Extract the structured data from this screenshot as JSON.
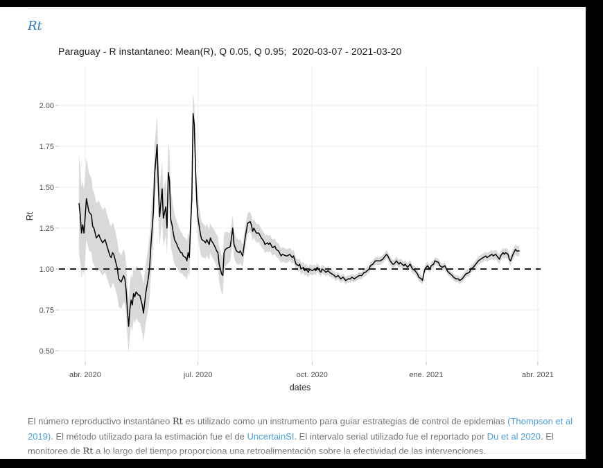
{
  "page": {
    "header_math": "Rt",
    "title": "Paraguay - R instantaneo: Mean(R), Q 0.05, Q 0.95;  2020-03-07 - 2021-03-20"
  },
  "footer": {
    "segments": [
      {
        "t": "El número reproductivo instantáneo ",
        "k": "text"
      },
      {
        "t": "Rt",
        "k": "math"
      },
      {
        "t": " es utilizado como un instrumento para guiar estrategias de control de epidemias ",
        "k": "text"
      },
      {
        "t": "(Thompson et al 2019)",
        "k": "link",
        "name": "link-thompson-et-al-2019"
      },
      {
        "t": ". El método utilizado para la estimación fue el de ",
        "k": "text"
      },
      {
        "t": "UncertainSI",
        "k": "link",
        "name": "link-uncertainsi"
      },
      {
        "t": ". El intervalo serial utilizado fue el reportado por ",
        "k": "text"
      },
      {
        "t": "Du et al 2020",
        "k": "link",
        "name": "link-du-et-al-2020"
      },
      {
        "t": ". El monitoreo de ",
        "k": "text"
      },
      {
        "t": "Rt",
        "k": "math"
      },
      {
        "t": " a lo largo del tiempo proporciona una retroalimentación sobre la efectividad de las intervenciones.",
        "k": "text"
      }
    ]
  },
  "chart_data": {
    "type": "line",
    "title": "Paraguay - R instantaneo: Mean(R), Q 0.05, Q 0.95;  2020-03-07 - 2021-03-20",
    "xlabel": "dates",
    "ylabel": "Rt",
    "series_name": "Mean(R)",
    "band_name": "Q 0.05 - Q 0.95",
    "reference_line": {
      "value": 1.0,
      "style": "dashed",
      "color": "#000000"
    },
    "start_date": "2020-03-27",
    "end_date": "2021-03-20",
    "ylim": [
      0.43,
      2.24
    ],
    "grid": true,
    "line_color": "#000000",
    "band_color": "#d5d5d5",
    "y_ticks": [
      0.5,
      0.75,
      1.0,
      1.25,
      1.5,
      1.75,
      2.0
    ],
    "x_ticks": [
      {
        "label": "abr. 2020",
        "day": 5
      },
      {
        "label": "jul. 2020",
        "day": 96
      },
      {
        "label": "oct. 2020",
        "day": 188
      },
      {
        "label": "ene. 2021",
        "day": 280
      },
      {
        "label": "abr. 2021",
        "day": 370
      }
    ],
    "points": [
      [
        0,
        1.4
      ],
      [
        1,
        1.33
      ],
      [
        2,
        1.22
      ],
      [
        3,
        1.27
      ],
      [
        4,
        1.22
      ],
      [
        6,
        1.43
      ],
      [
        7,
        1.39
      ],
      [
        8,
        1.35
      ],
      [
        10,
        1.33
      ],
      [
        11,
        1.26
      ],
      [
        12,
        1.25
      ],
      [
        13,
        1.22
      ],
      [
        14,
        1.19
      ],
      [
        16,
        1.21
      ],
      [
        17,
        1.19
      ],
      [
        19,
        1.16
      ],
      [
        21,
        1.18
      ],
      [
        23,
        1.13
      ],
      [
        25,
        1.08
      ],
      [
        26,
        1.07
      ],
      [
        27,
        1.1
      ],
      [
        28,
        1.09
      ],
      [
        30,
        1.03
      ],
      [
        31,
        1.0
      ],
      [
        32,
        0.94
      ],
      [
        34,
        0.92
      ],
      [
        36,
        0.96
      ],
      [
        37,
        0.94
      ],
      [
        38,
        0.87
      ],
      [
        39,
        0.75
      ],
      [
        40,
        0.65
      ],
      [
        41,
        0.75
      ],
      [
        42,
        0.81
      ],
      [
        43,
        0.78
      ],
      [
        44,
        0.85
      ],
      [
        45,
        0.83
      ],
      [
        46,
        0.86
      ],
      [
        48,
        0.84
      ],
      [
        49,
        0.84
      ],
      [
        51,
        0.78
      ],
      [
        52,
        0.73
      ],
      [
        54,
        0.86
      ],
      [
        56,
        0.95
      ],
      [
        57,
        1.02
      ],
      [
        58,
        1.15
      ],
      [
        60,
        1.35
      ],
      [
        61,
        1.58
      ],
      [
        63,
        1.76
      ],
      [
        64,
        1.5
      ],
      [
        65,
        1.32
      ],
      [
        67,
        1.49
      ],
      [
        68,
        1.31
      ],
      [
        70,
        1.38
      ],
      [
        71,
        1.25
      ],
      [
        72,
        1.59
      ],
      [
        73,
        1.54
      ],
      [
        74,
        1.3
      ],
      [
        75,
        1.27
      ],
      [
        76,
        1.22
      ],
      [
        77,
        1.18
      ],
      [
        79,
        1.15
      ],
      [
        80,
        1.13
      ],
      [
        82,
        1.1
      ],
      [
        83,
        1.1
      ],
      [
        84,
        1.08
      ],
      [
        86,
        1.07
      ],
      [
        87,
        1.05
      ],
      [
        88,
        1.1
      ],
      [
        89,
        1.07
      ],
      [
        90,
        1.27
      ],
      [
        91,
        1.43
      ],
      [
        92,
        1.95
      ],
      [
        93,
        1.88
      ],
      [
        94,
        1.6
      ],
      [
        95,
        1.41
      ],
      [
        96,
        1.31
      ],
      [
        97,
        1.26
      ],
      [
        98,
        1.21
      ],
      [
        99,
        1.18
      ],
      [
        101,
        1.17
      ],
      [
        102,
        1.16
      ],
      [
        103,
        1.18
      ],
      [
        105,
        1.15
      ],
      [
        106,
        1.19
      ],
      [
        107,
        1.17
      ],
      [
        108,
        1.16
      ],
      [
        110,
        1.13
      ],
      [
        111,
        1.11
      ],
      [
        112,
        1.1
      ],
      [
        113,
        1.03
      ],
      [
        115,
        0.97
      ],
      [
        116,
        0.96
      ],
      [
        117,
        1.1
      ],
      [
        118,
        1.12
      ],
      [
        120,
        1.13
      ],
      [
        121,
        1.13
      ],
      [
        122,
        1.14
      ],
      [
        124,
        1.25
      ],
      [
        125,
        1.15
      ],
      [
        127,
        1.11
      ],
      [
        129,
        1.1
      ],
      [
        130,
        1.11
      ],
      [
        132,
        1.08
      ],
      [
        134,
        1.19
      ],
      [
        136,
        1.28
      ],
      [
        138,
        1.29
      ],
      [
        139,
        1.27
      ],
      [
        140,
        1.23
      ],
      [
        141,
        1.25
      ],
      [
        143,
        1.22
      ],
      [
        145,
        1.22
      ],
      [
        147,
        1.19
      ],
      [
        149,
        1.17
      ],
      [
        150,
        1.15
      ],
      [
        152,
        1.16
      ],
      [
        153,
        1.15
      ],
      [
        154,
        1.16
      ],
      [
        156,
        1.13
      ],
      [
        158,
        1.14
      ],
      [
        159,
        1.12
      ],
      [
        161,
        1.11
      ],
      [
        163,
        1.08
      ],
      [
        164,
        1.09
      ],
      [
        167,
        1.08
      ],
      [
        168,
        1.08
      ],
      [
        170,
        1.09
      ],
      [
        172,
        1.07
      ],
      [
        173,
        1.08
      ],
      [
        175,
        1.03
      ],
      [
        177,
        1.02
      ],
      [
        178,
        1.03
      ],
      [
        179,
        1.0
      ],
      [
        181,
        1.01
      ],
      [
        182,
        0.99
      ],
      [
        183,
        1.0
      ],
      [
        185,
        0.98
      ],
      [
        186,
        1.0
      ],
      [
        188,
        0.99
      ],
      [
        190,
        1.0
      ],
      [
        191,
        0.99
      ],
      [
        192,
        1.01
      ],
      [
        195,
        0.98
      ],
      [
        196,
        1.0
      ],
      [
        198,
        0.99
      ],
      [
        199,
        0.98
      ],
      [
        201,
        0.99
      ],
      [
        202,
        0.98
      ],
      [
        204,
        0.97
      ],
      [
        206,
        0.96
      ],
      [
        207,
        0.95
      ],
      [
        209,
        0.96
      ],
      [
        211,
        0.94
      ],
      [
        213,
        0.95
      ],
      [
        215,
        0.93
      ],
      [
        217,
        0.94
      ],
      [
        219,
        0.94
      ],
      [
        220,
        0.95
      ],
      [
        222,
        0.94
      ],
      [
        224,
        0.95
      ],
      [
        226,
        0.96
      ],
      [
        228,
        0.96
      ],
      [
        230,
        0.98
      ],
      [
        231,
        0.98
      ],
      [
        234,
        1.0
      ],
      [
        235,
        1.02
      ],
      [
        237,
        1.03
      ],
      [
        239,
        1.05
      ],
      [
        241,
        1.05
      ],
      [
        243,
        1.05
      ],
      [
        245,
        1.06
      ],
      [
        247,
        1.08
      ],
      [
        248,
        1.09
      ],
      [
        249,
        1.08
      ],
      [
        251,
        1.05
      ],
      [
        253,
        1.03
      ],
      [
        254,
        1.03
      ],
      [
        256,
        1.05
      ],
      [
        258,
        1.03
      ],
      [
        259,
        1.04
      ],
      [
        262,
        1.02
      ],
      [
        263,
        1.03
      ],
      [
        265,
        1.01
      ],
      [
        267,
        1.03
      ],
      [
        269,
        1.0
      ],
      [
        271,
        0.99
      ],
      [
        273,
        0.97
      ],
      [
        274,
        0.95
      ],
      [
        276,
        0.94
      ],
      [
        277,
        0.93
      ],
      [
        278,
        0.97
      ],
      [
        279,
        1.0
      ],
      [
        280,
        1.01
      ],
      [
        281,
        1.02
      ],
      [
        283,
        1.0
      ],
      [
        284,
        1.02
      ],
      [
        286,
        1.03
      ],
      [
        287,
        1.05
      ],
      [
        290,
        1.04
      ],
      [
        291,
        1.02
      ],
      [
        293,
        1.01
      ],
      [
        295,
        1.02
      ],
      [
        297,
        0.99
      ],
      [
        298,
        0.98
      ],
      [
        301,
        0.96
      ],
      [
        302,
        0.95
      ],
      [
        304,
        0.94
      ],
      [
        306,
        0.94
      ],
      [
        307,
        0.93
      ],
      [
        309,
        0.94
      ],
      [
        311,
        0.96
      ],
      [
        312,
        0.97
      ],
      [
        315,
        0.98
      ],
      [
        316,
        1.0
      ],
      [
        318,
        1.01
      ],
      [
        320,
        1.03
      ],
      [
        322,
        1.05
      ],
      [
        324,
        1.06
      ],
      [
        326,
        1.07
      ],
      [
        328,
        1.08
      ],
      [
        329,
        1.07
      ],
      [
        331,
        1.08
      ],
      [
        333,
        1.09
      ],
      [
        334,
        1.08
      ],
      [
        336,
        1.09
      ],
      [
        338,
        1.07
      ],
      [
        339,
        1.06
      ],
      [
        340,
        1.08
      ],
      [
        342,
        1.1
      ],
      [
        343,
        1.09
      ],
      [
        344,
        1.1
      ],
      [
        346,
        1.09
      ],
      [
        347,
        1.06
      ],
      [
        348,
        1.05
      ],
      [
        350,
        1.09
      ],
      [
        352,
        1.12
      ],
      [
        353,
        1.11
      ],
      [
        355,
        1.11
      ]
    ],
    "band_halfwidth": [
      [
        0,
        0.3
      ],
      [
        4,
        0.26
      ],
      [
        9,
        0.23
      ],
      [
        15,
        0.21
      ],
      [
        20,
        0.2
      ],
      [
        26,
        0.19
      ],
      [
        31,
        0.17
      ],
      [
        37,
        0.16
      ],
      [
        40,
        0.16
      ],
      [
        45,
        0.16
      ],
      [
        51,
        0.17
      ],
      [
        56,
        0.19
      ],
      [
        63,
        0.18
      ],
      [
        68,
        0.17
      ],
      [
        73,
        0.18
      ],
      [
        79,
        0.14
      ],
      [
        84,
        0.12
      ],
      [
        89,
        0.12
      ],
      [
        92,
        0.13
      ],
      [
        96,
        0.12
      ],
      [
        101,
        0.1
      ],
      [
        107,
        0.09
      ],
      [
        112,
        0.1
      ],
      [
        116,
        0.12
      ],
      [
        121,
        0.09
      ],
      [
        126,
        0.08
      ],
      [
        132,
        0.07
      ],
      [
        138,
        0.06
      ],
      [
        146,
        0.055
      ],
      [
        154,
        0.05
      ],
      [
        163,
        0.045
      ],
      [
        171,
        0.04
      ],
      [
        179,
        0.035
      ],
      [
        188,
        0.03
      ],
      [
        199,
        0.025
      ],
      [
        210,
        0.022
      ],
      [
        221,
        0.022
      ],
      [
        233,
        0.022
      ],
      [
        244,
        0.025
      ],
      [
        255,
        0.025
      ],
      [
        266,
        0.025
      ],
      [
        277,
        0.025
      ],
      [
        288,
        0.022
      ],
      [
        300,
        0.022
      ],
      [
        311,
        0.022
      ],
      [
        322,
        0.025
      ],
      [
        333,
        0.027
      ],
      [
        344,
        0.03
      ],
      [
        355,
        0.032
      ]
    ]
  }
}
